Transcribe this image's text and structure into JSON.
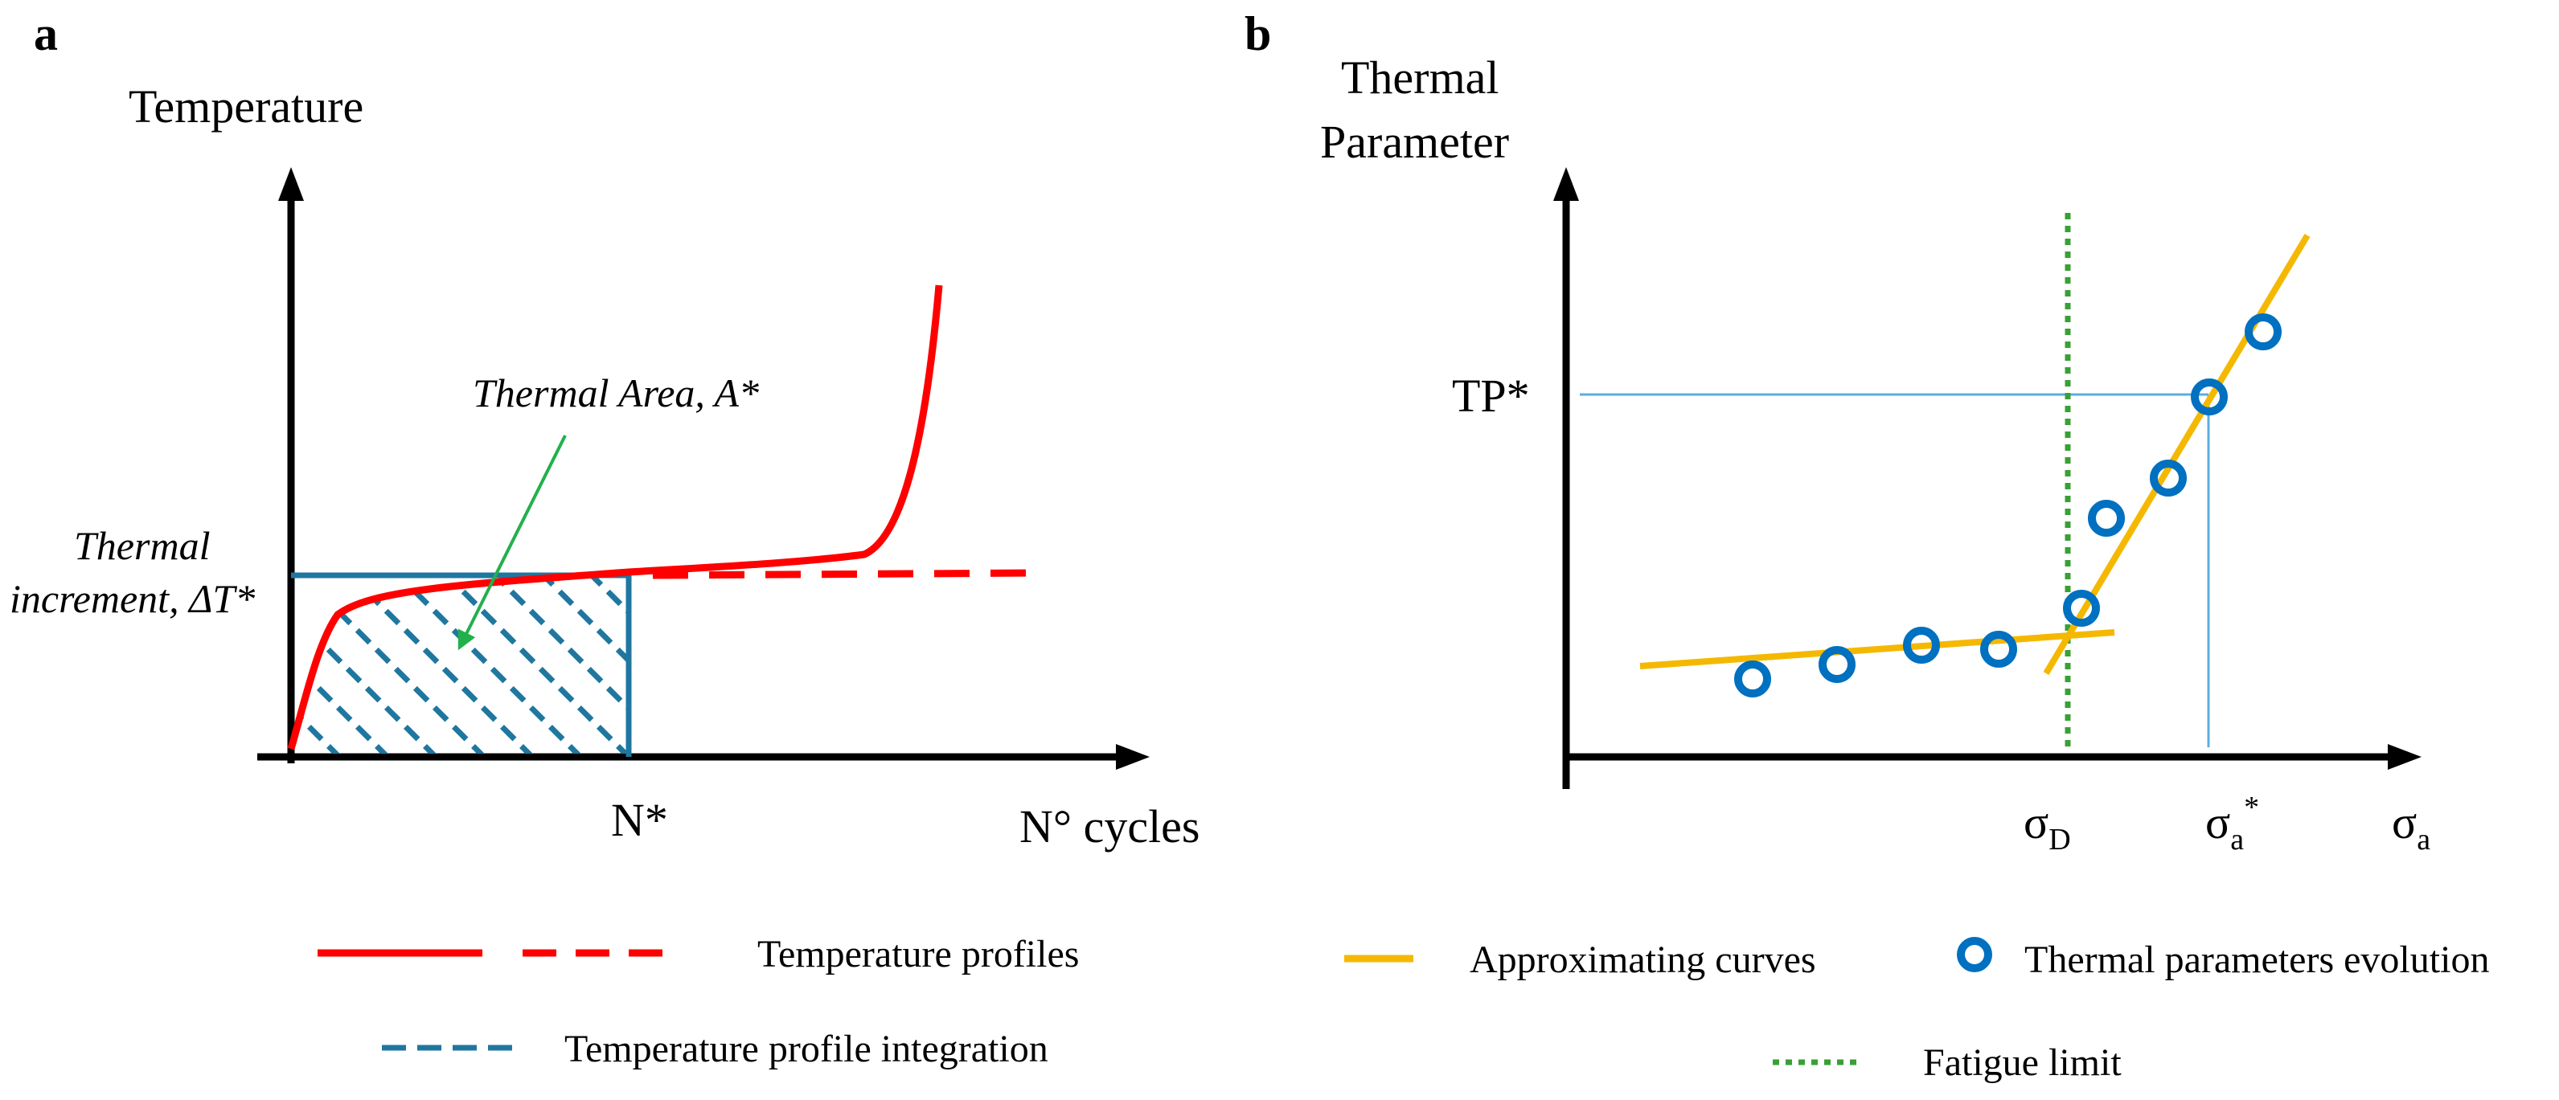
{
  "panel_a": {
    "letter": "a",
    "y_axis_title": "Temperature",
    "x_axis_title": "N° cycles",
    "x_marker_label": "N*",
    "annotation_area": "Thermal Area, A*",
    "annotation_increment_line1": "Thermal",
    "annotation_increment_line2": "increment, ΔT*",
    "legend": [
      {
        "label": "Temperature profiles",
        "style": "solid + dashed",
        "color": "#ff0000"
      },
      {
        "label": "Temperature profile integration",
        "style": "dashed",
        "color": "#1f77a0"
      }
    ]
  },
  "panel_b": {
    "letter": "b",
    "y_axis_title_line1": "Thermal",
    "y_axis_title_line2": "Parameter",
    "y_marker_label": "TP*",
    "x_tick_sigma_d": "σ",
    "x_tick_sigma_d_sub": "D",
    "x_tick_sigma_a_star": "σ",
    "x_tick_sigma_a_star_sub": "a",
    "x_tick_sigma_a_star_sup": "*",
    "x_axis_title": "σ",
    "x_axis_title_sub": "a",
    "legend": [
      {
        "label": "Approximating curves",
        "style": "solid",
        "color": "#f5b800"
      },
      {
        "label": "Thermal parameters evolution",
        "style": "circle",
        "color": "#0070c0"
      },
      {
        "label": "Fatigue limit",
        "style": "dotted",
        "color": "#3aa035"
      }
    ]
  },
  "colors": {
    "axis": "#000000",
    "red": "#ff0000",
    "teal": "#1f77a0",
    "orange": "#f5b800",
    "blue": "#0070c0",
    "green": "#3aa035",
    "guide": "#5aaee0",
    "arrow_green": "#22b04c"
  }
}
